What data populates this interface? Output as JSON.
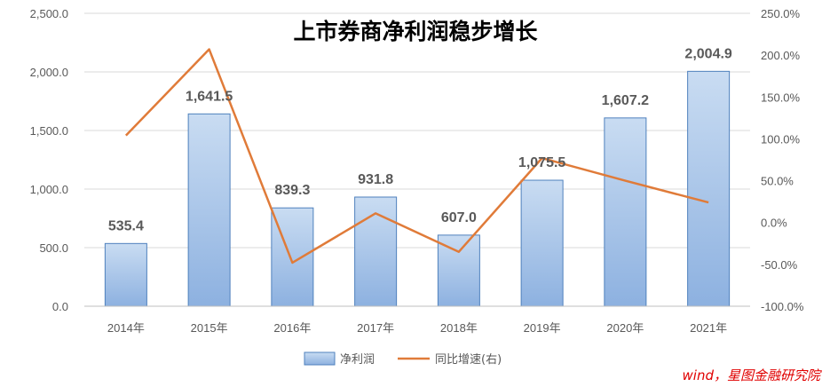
{
  "chart_data": {
    "type": "bar",
    "title": "上市券商净利润稳步增长",
    "categories": [
      "2014年",
      "2015年",
      "2016年",
      "2017年",
      "2018年",
      "2019年",
      "2020年",
      "2021年"
    ],
    "series": [
      {
        "name": "净利润",
        "kind": "bar",
        "axis": "left",
        "values": [
          535.4,
          1641.5,
          839.3,
          931.8,
          607.0,
          1075.5,
          1607.2,
          2004.9
        ],
        "labels": [
          "535.4",
          "1,641.5",
          "839.3",
          "931.8",
          "607.0",
          "1,075.5",
          "1,607.2",
          "2,004.9"
        ]
      },
      {
        "name": "同比增速(右)",
        "kind": "line",
        "axis": "right",
        "values": [
          104,
          207,
          -48,
          11,
          -35,
          77,
          50,
          24
        ]
      }
    ],
    "y_left": {
      "lim": [
        0,
        2500
      ],
      "ticks": [
        "0.0",
        "500.0",
        "1,000.0",
        "1,500.0",
        "2,000.0",
        "2,500.0"
      ]
    },
    "y_right": {
      "lim": [
        -100,
        250
      ],
      "ticks": [
        "-100.0%",
        "-50.0%",
        "0.0%",
        "50.0%",
        "100.0%",
        "150.0%",
        "200.0%",
        "250.0%"
      ]
    },
    "grid": true,
    "legend_position": "bottom",
    "source": "wind，星图金融研究院",
    "colors": {
      "bar_top": "#c9dcf2",
      "bar_bottom": "#8db1e0",
      "bar_stroke": "#4f81bd",
      "line": "#e07b39",
      "grid": "#d9d9d9"
    }
  }
}
